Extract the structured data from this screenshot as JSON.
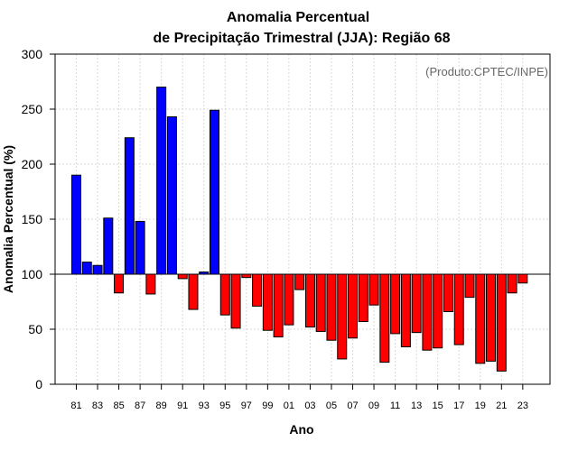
{
  "chart_data": {
    "type": "bar",
    "title_line1": "Anomalia Percentual",
    "title_line2": "de Precipitação Trimestral (JJA): Região 68",
    "credit": "(Produto:CPTEC/INPE)",
    "xlabel": "Ano",
    "ylabel": "Anomalia Percentual (%)",
    "ylim": [
      0,
      300
    ],
    "yticks": [
      0,
      50,
      100,
      150,
      200,
      250,
      300
    ],
    "baseline": 100,
    "grid": true,
    "colors": {
      "above": "#0000ff",
      "below": "#ff0000",
      "edge": "#000000"
    },
    "categories": [
      "81",
      "82",
      "83",
      "84",
      "85",
      "86",
      "87",
      "88",
      "89",
      "90",
      "91",
      "92",
      "93",
      "94",
      "95",
      "96",
      "97",
      "98",
      "99",
      "00",
      "01",
      "02",
      "03",
      "04",
      "05",
      "06",
      "07",
      "08",
      "09",
      "10",
      "11",
      "12",
      "13",
      "14",
      "15",
      "16",
      "17",
      "18",
      "19",
      "20",
      "21",
      "22",
      "23"
    ],
    "tick_labels": [
      "81",
      "83",
      "85",
      "87",
      "89",
      "91",
      "93",
      "95",
      "97",
      "99",
      "01",
      "03",
      "05",
      "07",
      "09",
      "11",
      "13",
      "15",
      "17",
      "19",
      "21",
      "23"
    ],
    "values": [
      190,
      111,
      108,
      151,
      83,
      224,
      148,
      82,
      270,
      243,
      96,
      68,
      102,
      249,
      63,
      51,
      97,
      71,
      49,
      43,
      54,
      86,
      52,
      48,
      40,
      23,
      42,
      57,
      72,
      20,
      46,
      34,
      47,
      31,
      33,
      66,
      36,
      79,
      19,
      21,
      12,
      83,
      92
    ]
  }
}
